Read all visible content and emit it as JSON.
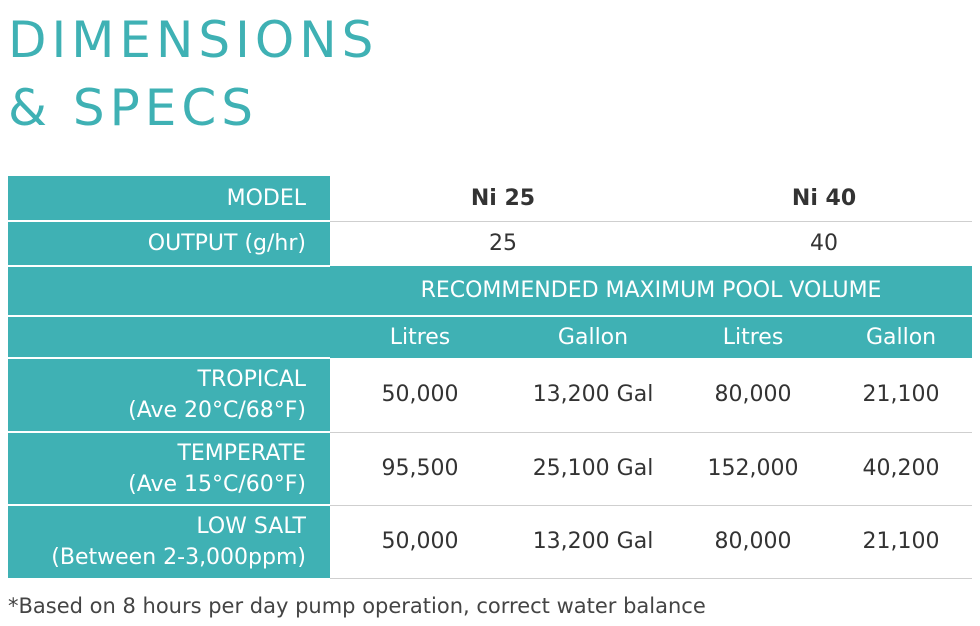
{
  "title": {
    "line1": "DIMENSIONS",
    "line2": "& SPECS"
  },
  "table": {
    "model": {
      "label": "MODEL",
      "values": [
        "Ni 25",
        "Ni 40"
      ]
    },
    "output": {
      "label": "OUTPUT (g/hr)",
      "values": [
        "25",
        "40"
      ]
    },
    "section_header": "RECOMMENDED MAXIMUM POOL VOLUME",
    "units": [
      "Litres",
      "Gallon",
      "Litres",
      "Gallon"
    ],
    "rows": [
      {
        "line1": "TROPICAL",
        "line2": "(Ave 20°C/68°F)",
        "cells": [
          "50,000",
          "13,200 Gal",
          "80,000",
          "21,100"
        ]
      },
      {
        "line1": "TEMPERATE",
        "line2": "(Ave 15°C/60°F)",
        "cells": [
          "95,500",
          "25,100 Gal",
          "152,000",
          "40,200"
        ]
      },
      {
        "line1": "LOW SALT",
        "line2": "(Between 2-3,000ppm)",
        "cells": [
          "50,000",
          "13,200 Gal",
          "80,000",
          "21,100"
        ]
      }
    ]
  },
  "footnote": "*Based on 8 hours per day pump operation, correct water balance",
  "colors": {
    "accent": "#3fb1b4",
    "text": "#333333"
  }
}
